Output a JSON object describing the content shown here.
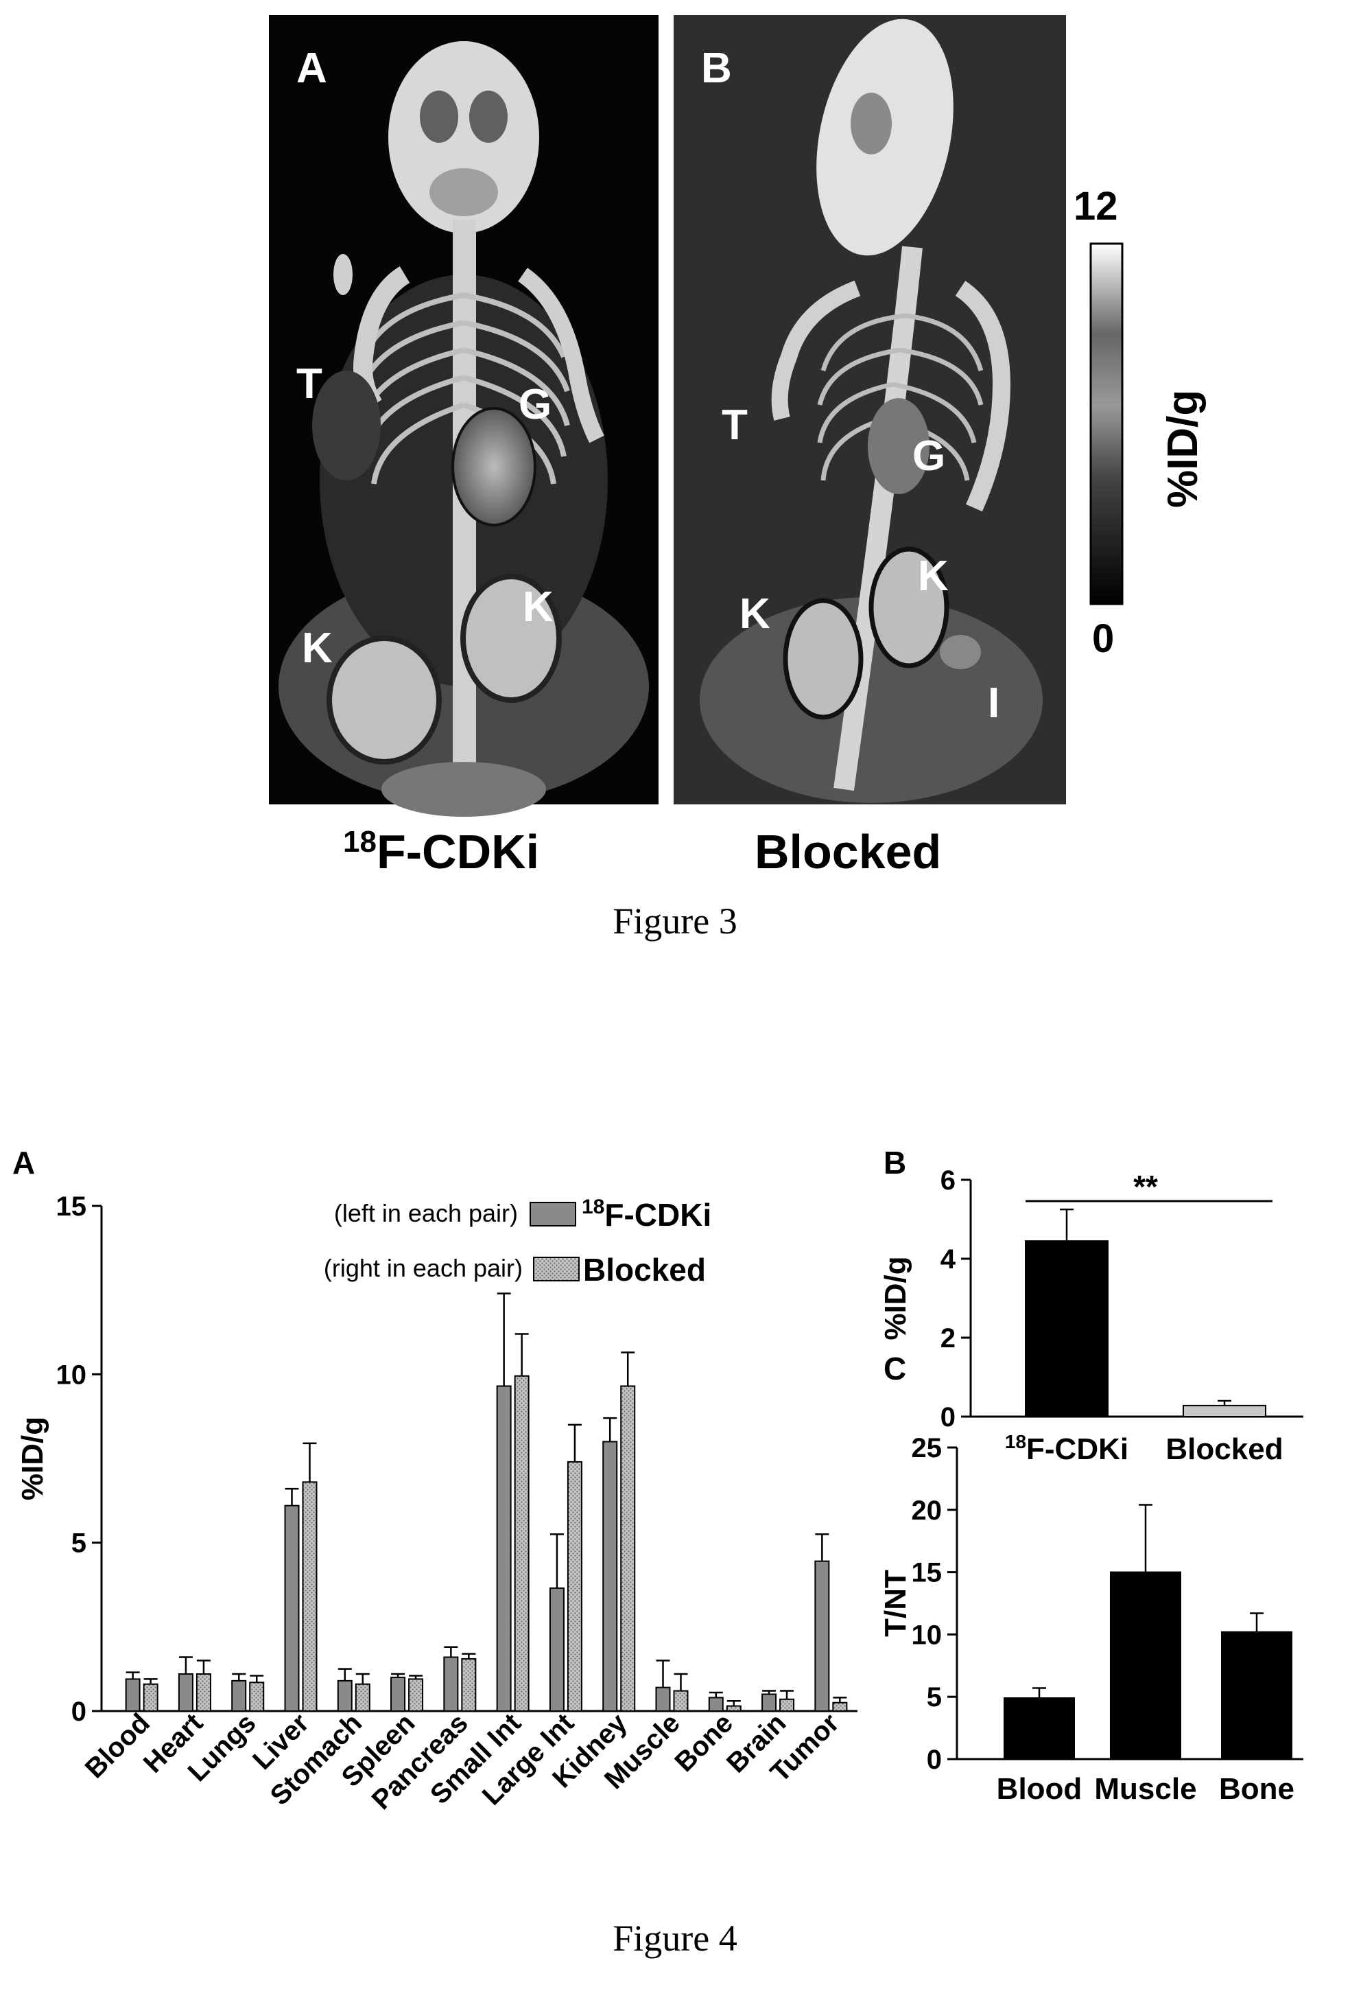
{
  "figure3": {
    "caption": "Figure 3",
    "panel_a_letter": "A",
    "panel_b_letter": "B",
    "panel_a_label_prefix": "18",
    "panel_a_label_text": "F-CDKi",
    "panel_b_label": "Blocked",
    "organ_labels_a": {
      "t": "T",
      "g": "G",
      "k1": "K",
      "k2": "K"
    },
    "organ_labels_b": {
      "t": "T",
      "g": "G",
      "k1": "K",
      "k2": "K",
      "i": "I"
    },
    "colorbar": {
      "max": "12",
      "min": "0",
      "unit": "%ID/g"
    }
  },
  "figure4": {
    "caption": "Figure 4",
    "panel_a": {
      "letter": "A",
      "legend_left_note": "(left in each pair)",
      "legend_right_note": "(right in each pair)",
      "legend_left_prefix": "18",
      "legend_left_text": "F-CDKi",
      "legend_right_text": "Blocked"
    },
    "panel_b": {
      "letter": "B",
      "significance": "**"
    },
    "panel_c": {
      "letter": "C"
    }
  },
  "chart_data": [
    {
      "type": "bar",
      "panel": "A",
      "categories": [
        "Blood",
        "Heart",
        "Lungs",
        "Liver",
        "Stomach",
        "Spleen",
        "Pancreas",
        "Small Int",
        "Large Int",
        "Kidney",
        "Muscle",
        "Bone",
        "Brain",
        "Tumor"
      ],
      "series": [
        {
          "name": "18F-CDKi",
          "values": [
            0.95,
            1.1,
            0.9,
            6.1,
            0.9,
            1.0,
            1.6,
            9.65,
            3.65,
            8.0,
            0.7,
            0.4,
            0.5,
            4.45
          ],
          "errors": [
            0.2,
            0.5,
            0.2,
            0.5,
            0.35,
            0.1,
            0.3,
            2.75,
            1.6,
            0.7,
            0.8,
            0.15,
            0.1,
            0.8
          ],
          "color": "#8a8a8a"
        },
        {
          "name": "Blocked",
          "values": [
            0.8,
            1.1,
            0.85,
            6.8,
            0.8,
            0.95,
            1.55,
            9.95,
            7.4,
            9.65,
            0.6,
            0.15,
            0.35,
            0.25
          ],
          "errors": [
            0.15,
            0.4,
            0.2,
            1.15,
            0.3,
            0.1,
            0.15,
            1.25,
            1.1,
            1.0,
            0.5,
            0.15,
            0.25,
            0.15
          ],
          "color": "#b8b8b8"
        }
      ],
      "ylabel": "%ID/g",
      "ylim": [
        0,
        15
      ],
      "yticks": [
        "0",
        "5",
        "10",
        "15"
      ]
    },
    {
      "type": "bar",
      "panel": "B",
      "categories": [
        "18F-CDKi",
        "Blocked"
      ],
      "values": [
        4.45,
        0.28
      ],
      "errors": [
        0.8,
        0.12
      ],
      "colors": [
        "#000000",
        "#c8c8c8"
      ],
      "ylabel": "%ID/g",
      "ylim": [
        0,
        6
      ],
      "yticks": [
        "0",
        "2",
        "4",
        "6"
      ]
    },
    {
      "type": "bar",
      "panel": "C",
      "categories": [
        "Blood",
        "Muscle",
        "Bone"
      ],
      "values": [
        4.9,
        15.0,
        10.2
      ],
      "errors": [
        0.8,
        5.4,
        1.5
      ],
      "ylabel": "T/NT",
      "ylim": [
        0,
        25
      ],
      "yticks": [
        "0",
        "5",
        "10",
        "15",
        "20",
        "25"
      ]
    }
  ]
}
